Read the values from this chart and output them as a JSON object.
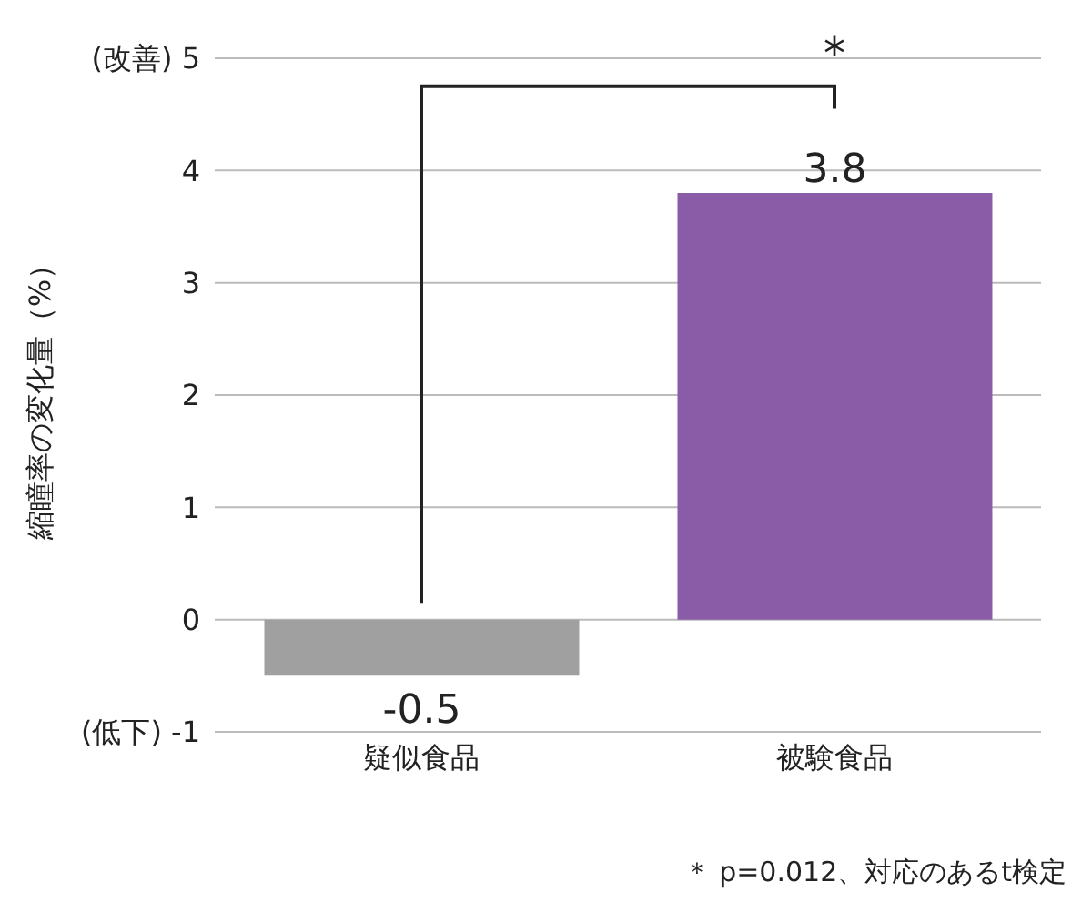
{
  "chart_data": {
    "type": "bar",
    "ylabel": "縮瞳率の変化量（%）",
    "categories": [
      "疑似食品",
      "被験食品"
    ],
    "values": [
      -0.5,
      3.8
    ],
    "colors": [
      "#a0a0a0",
      "#8a5ca8"
    ],
    "ylim": [
      -1,
      5
    ],
    "yticks": [
      {
        "value": -1,
        "label": "(低下) -1"
      },
      0,
      1,
      2,
      3,
      4,
      {
        "value": 5,
        "label": "(改善) 5"
      }
    ],
    "grid": "y",
    "data_labels": true,
    "annotations": [
      "*",
      "＊ p=0.012、対応のあるt検定"
    ]
  }
}
